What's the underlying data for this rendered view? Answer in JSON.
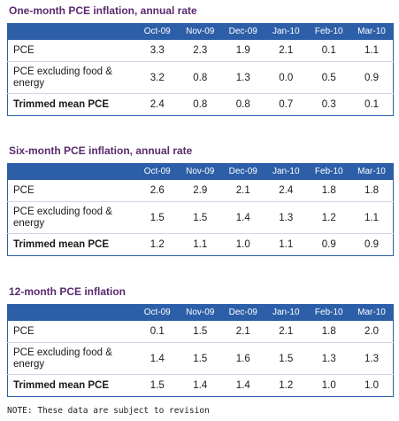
{
  "columns": [
    "Oct-09",
    "Nov-09",
    "Dec-09",
    "Jan-10",
    "Feb-10",
    "Mar-10"
  ],
  "tables": [
    {
      "title": "One-month PCE inflation, annual rate",
      "rows": [
        {
          "label": "PCE",
          "values": [
            "3.3",
            "2.3",
            "1.9",
            "2.1",
            "0.1",
            "1.1"
          ]
        },
        {
          "label": "PCE excluding food & energy",
          "values": [
            "3.2",
            "0.8",
            "1.3",
            "0.0",
            "0.5",
            "0.9"
          ]
        },
        {
          "label": "Trimmed mean PCE",
          "values": [
            "2.4",
            "0.8",
            "0.8",
            "0.7",
            "0.3",
            "0.1"
          ]
        }
      ]
    },
    {
      "title": "Six-month PCE inflation, annual rate",
      "rows": [
        {
          "label": "PCE",
          "values": [
            "2.6",
            "2.9",
            "2.1",
            "2.4",
            "1.8",
            "1.8"
          ]
        },
        {
          "label": "PCE excluding food & energy",
          "values": [
            "1.5",
            "1.5",
            "1.4",
            "1.3",
            "1.2",
            "1.1"
          ]
        },
        {
          "label": "Trimmed mean PCE",
          "values": [
            "1.2",
            "1.1",
            "1.0",
            "1.1",
            "0.9",
            "0.9"
          ]
        }
      ]
    },
    {
      "title": "12-month PCE inflation",
      "rows": [
        {
          "label": "PCE",
          "values": [
            "0.1",
            "1.5",
            "2.1",
            "2.1",
            "1.8",
            "2.0"
          ]
        },
        {
          "label": "PCE excluding food & energy",
          "values": [
            "1.4",
            "1.5",
            "1.6",
            "1.5",
            "1.3",
            "1.3"
          ]
        },
        {
          "label": "Trimmed mean PCE",
          "values": [
            "1.5",
            "1.4",
            "1.4",
            "1.2",
            "1.0",
            "1.0"
          ]
        }
      ]
    }
  ],
  "note": "NOTE: These data are subject to revision",
  "colors": {
    "header_bg": "#2d5fa8",
    "title": "#5a2a6e",
    "row_border": "#cfd8e8"
  }
}
